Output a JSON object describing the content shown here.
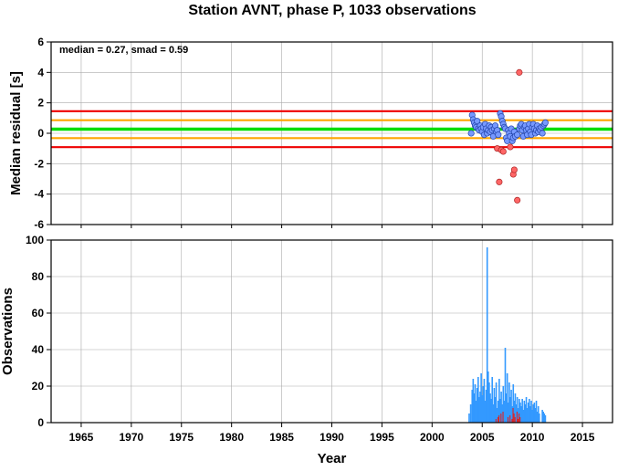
{
  "figure": {
    "title": "Station AVNT, phase P, 1033 observations"
  },
  "colors": {
    "median_line": "#00dd00",
    "smad_line": "#ffa500",
    "limit_line": "#ee0000",
    "normal_point": "#7799ff",
    "outlier_point": "#ff6666",
    "normal_bar": "#3399ff",
    "outlier_bar": "#dd2222",
    "grid": "#aaaaaa"
  },
  "chart_data": [
    {
      "type": "scatter",
      "ylabel": "Median residual [s]",
      "annotation": "median = 0.27, smad = 0.59",
      "xlim": [
        1962,
        2018
      ],
      "ylim": [
        -6,
        6
      ],
      "x_ticks": [
        1965,
        1970,
        1975,
        1980,
        1985,
        1990,
        1995,
        2000,
        2005,
        2010,
        2015
      ],
      "y_ticks": [
        -6,
        -4,
        -2,
        0,
        2,
        4,
        6
      ],
      "grid": true,
      "reference_lines": [
        {
          "name": "median",
          "y": 0.27,
          "color": "green"
        },
        {
          "name": "+smad",
          "y": 0.86,
          "color": "orange"
        },
        {
          "name": "-smad",
          "y": -0.32,
          "color": "orange"
        },
        {
          "name": "upper limit",
          "y": 1.45,
          "color": "red"
        },
        {
          "name": "lower limit",
          "y": -0.91,
          "color": "red"
        }
      ],
      "series": [
        {
          "kind": "normal",
          "points": [
            [
              2003.9,
              0.0
            ],
            [
              2004.0,
              1.2
            ],
            [
              2004.1,
              0.9
            ],
            [
              2004.2,
              0.7
            ],
            [
              2004.3,
              0.5
            ],
            [
              2004.4,
              0.4
            ],
            [
              2004.5,
              0.8
            ],
            [
              2004.6,
              0.3
            ],
            [
              2004.7,
              0.2
            ],
            [
              2004.8,
              0.5
            ],
            [
              2004.9,
              0.3
            ],
            [
              2005.0,
              0.1
            ],
            [
              2005.1,
              0.4
            ],
            [
              2005.2,
              -0.1
            ],
            [
              2005.3,
              0.6
            ],
            [
              2005.4,
              0.3
            ],
            [
              2005.5,
              0.0
            ],
            [
              2005.6,
              0.2
            ],
            [
              2005.7,
              0.5
            ],
            [
              2005.8,
              0.1
            ],
            [
              2005.9,
              0.4
            ],
            [
              2006.0,
              0.2
            ],
            [
              2006.1,
              -0.2
            ],
            [
              2006.2,
              0.3
            ],
            [
              2006.3,
              0.5
            ],
            [
              2006.4,
              0.1
            ],
            [
              2006.5,
              0.2
            ],
            [
              2006.6,
              -0.1
            ],
            [
              2006.8,
              1.3
            ],
            [
              2006.9,
              1.1
            ],
            [
              2007.0,
              0.8
            ],
            [
              2007.1,
              0.6
            ],
            [
              2007.2,
              0.4
            ],
            [
              2007.3,
              0.3
            ],
            [
              2007.4,
              -0.3
            ],
            [
              2007.5,
              -0.5
            ],
            [
              2007.6,
              0.2
            ],
            [
              2007.7,
              0.0
            ],
            [
              2007.8,
              -0.2
            ],
            [
              2007.9,
              0.3
            ],
            [
              2008.0,
              -0.5
            ],
            [
              2008.1,
              -0.3
            ],
            [
              2008.2,
              0.1
            ],
            [
              2008.3,
              -0.2
            ],
            [
              2008.5,
              -0.1
            ],
            [
              2008.7,
              0.3
            ],
            [
              2008.8,
              0.5
            ],
            [
              2008.9,
              0.6
            ],
            [
              2009.0,
              0.2
            ],
            [
              2009.1,
              -0.2
            ],
            [
              2009.2,
              0.4
            ],
            [
              2009.3,
              0.5
            ],
            [
              2009.4,
              0.2
            ],
            [
              2009.5,
              -0.1
            ],
            [
              2009.6,
              0.3
            ],
            [
              2009.7,
              0.6
            ],
            [
              2009.8,
              0.1
            ],
            [
              2009.9,
              -0.1
            ],
            [
              2010.0,
              0.4
            ],
            [
              2010.1,
              0.6
            ],
            [
              2010.2,
              0.3
            ],
            [
              2010.3,
              0.0
            ],
            [
              2010.4,
              0.2
            ],
            [
              2010.5,
              0.5
            ],
            [
              2010.6,
              0.1
            ],
            [
              2010.7,
              0.3
            ],
            [
              2010.8,
              0.2
            ],
            [
              2010.9,
              0.4
            ],
            [
              2011.0,
              0.0
            ],
            [
              2011.1,
              0.5
            ],
            [
              2011.2,
              0.6
            ],
            [
              2011.3,
              0.7
            ]
          ]
        },
        {
          "kind": "outlier",
          "points": [
            [
              2006.5,
              -1.0
            ],
            [
              2006.7,
              -3.2
            ],
            [
              2006.9,
              -1.1
            ],
            [
              2007.1,
              -1.2
            ],
            [
              2007.8,
              -0.9
            ],
            [
              2008.1,
              -2.7
            ],
            [
              2008.2,
              -2.4
            ],
            [
              2008.5,
              -4.4
            ],
            [
              2008.7,
              4.0
            ]
          ]
        }
      ]
    },
    {
      "type": "bar",
      "xlabel": "Year",
      "ylabel": "Observations",
      "xlim": [
        1962,
        2018
      ],
      "ylim": [
        0,
        100
      ],
      "x_ticks": [
        1965,
        1970,
        1975,
        1980,
        1985,
        1990,
        1995,
        2000,
        2005,
        2010,
        2015
      ],
      "y_ticks": [
        0,
        20,
        40,
        60,
        80,
        100
      ],
      "grid": true,
      "bins": [
        [
          2003.7,
          5,
          0
        ],
        [
          2003.85,
          10,
          0
        ],
        [
          2004.0,
          18,
          0
        ],
        [
          2004.1,
          24,
          0
        ],
        [
          2004.2,
          16,
          0
        ],
        [
          2004.3,
          21,
          0
        ],
        [
          2004.4,
          12,
          0
        ],
        [
          2004.5,
          19,
          0
        ],
        [
          2004.6,
          25,
          0
        ],
        [
          2004.7,
          14,
          0
        ],
        [
          2004.8,
          17,
          0
        ],
        [
          2004.9,
          27,
          0
        ],
        [
          2005.0,
          15,
          0
        ],
        [
          2005.1,
          20,
          0
        ],
        [
          2005.2,
          24,
          0
        ],
        [
          2005.3,
          12,
          0
        ],
        [
          2005.4,
          18,
          0
        ],
        [
          2005.5,
          96,
          0
        ],
        [
          2005.6,
          28,
          0
        ],
        [
          2005.7,
          22,
          0
        ],
        [
          2005.8,
          16,
          0
        ],
        [
          2005.9,
          13,
          0
        ],
        [
          2006.0,
          25,
          0
        ],
        [
          2006.1,
          10,
          0
        ],
        [
          2006.2,
          19,
          0
        ],
        [
          2006.3,
          14,
          0
        ],
        [
          2006.4,
          22,
          2
        ],
        [
          2006.5,
          8,
          0
        ],
        [
          2006.6,
          12,
          3
        ],
        [
          2006.7,
          24,
          4
        ],
        [
          2006.8,
          13,
          0
        ],
        [
          2006.9,
          17,
          5
        ],
        [
          2007.0,
          10,
          0
        ],
        [
          2007.1,
          20,
          6
        ],
        [
          2007.2,
          12,
          0
        ],
        [
          2007.3,
          41,
          0
        ],
        [
          2007.4,
          16,
          0
        ],
        [
          2007.5,
          27,
          0
        ],
        [
          2007.6,
          11,
          3
        ],
        [
          2007.7,
          22,
          0
        ],
        [
          2007.8,
          14,
          4
        ],
        [
          2007.9,
          18,
          0
        ],
        [
          2008.0,
          9,
          2
        ],
        [
          2008.1,
          21,
          8
        ],
        [
          2008.2,
          12,
          5
        ],
        [
          2008.3,
          16,
          3
        ],
        [
          2008.4,
          10,
          0
        ],
        [
          2008.5,
          14,
          6
        ],
        [
          2008.6,
          8,
          2
        ],
        [
          2008.7,
          13,
          5
        ],
        [
          2008.8,
          11,
          3
        ],
        [
          2008.9,
          9,
          0
        ],
        [
          2009.0,
          13,
          0
        ],
        [
          2009.1,
          7,
          0
        ],
        [
          2009.2,
          12,
          0
        ],
        [
          2009.3,
          10,
          0
        ],
        [
          2009.4,
          14,
          0
        ],
        [
          2009.5,
          8,
          0
        ],
        [
          2009.6,
          11,
          0
        ],
        [
          2009.7,
          13,
          0
        ],
        [
          2009.8,
          9,
          0
        ],
        [
          2009.9,
          12,
          0
        ],
        [
          2010.0,
          7,
          0
        ],
        [
          2010.1,
          10,
          0
        ],
        [
          2010.2,
          11,
          0
        ],
        [
          2010.3,
          8,
          0
        ],
        [
          2010.4,
          12,
          0
        ],
        [
          2010.5,
          6,
          0
        ],
        [
          2010.6,
          9,
          0
        ],
        [
          2010.7,
          5,
          0
        ],
        [
          2011.0,
          7,
          0
        ],
        [
          2011.1,
          6,
          0
        ],
        [
          2011.2,
          5,
          0
        ],
        [
          2011.3,
          4,
          0
        ]
      ]
    }
  ]
}
